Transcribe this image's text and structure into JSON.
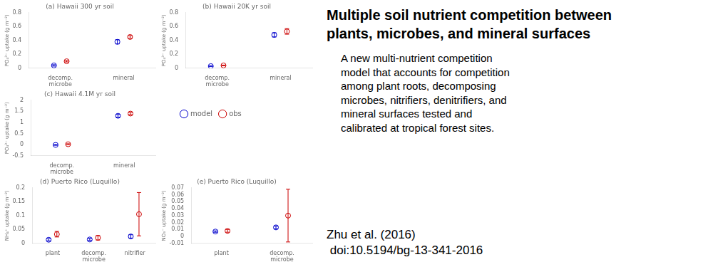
{
  "title": "Multiple soil nutrient competition between\nplants, microbes, and mineral surfaces",
  "subtitle": "A new multi-nutrient competition\nmodel that accounts for competition\namong plant roots, decomposing\nmicrobes, nitrifiers, denitrifiers, and\nmineral surfaces tested and\ncalibrated at tropical forest sites.",
  "annotations": [
    "Zhu et al. (2016)",
    " doi:10.5194/bg-13-341-2016"
  ],
  "legend": "upper left",
  "chart_data": [
    {
      "type": "scatter",
      "title": "(a) Hawaii 300 yr soil",
      "ylabel": "PO₄³⁻ uptake (g m⁻²)",
      "categories": [
        "decomp.\nmicrobe",
        "mineral"
      ],
      "series": [
        {
          "name": "model",
          "color": "#0000cc",
          "values": [
            0.04,
            0.38
          ],
          "errors": [
            0.01,
            0.03
          ]
        },
        {
          "name": "obs",
          "color": "#cc0000",
          "values": [
            0.1,
            0.45
          ],
          "errors": [
            0.01,
            0.02
          ]
        }
      ],
      "ylim": [
        0,
        0.8
      ],
      "yticks": [
        0,
        0.2,
        0.4,
        0.6,
        0.8
      ],
      "grid": false,
      "marker": "circle"
    },
    {
      "type": "scatter",
      "title": "(b) Hawaii 20K yr soil",
      "ylabel": "PO₄³⁻ uptake (g m⁻²)",
      "categories": [
        "decomp.\nmicrobe",
        "mineral"
      ],
      "series": [
        {
          "name": "model",
          "color": "#0000cc",
          "values": [
            0.03,
            0.48
          ],
          "errors": [
            0.005,
            0.03
          ]
        },
        {
          "name": "obs",
          "color": "#cc0000",
          "values": [
            0.04,
            0.53
          ],
          "errors": [
            0.005,
            0.04
          ]
        }
      ],
      "ylim": [
        0,
        0.8
      ],
      "yticks": [
        0,
        0.2,
        0.4,
        0.6,
        0.8
      ],
      "grid": false,
      "marker": "circle"
    },
    {
      "type": "scatter",
      "title": "(c) Hawaii 4.1M yr soil",
      "ylabel": "PO₄³⁻ uptake (g m⁻²)",
      "categories": [
        "decomp.\nmicrobe",
        "mineral"
      ],
      "series": [
        {
          "name": "model",
          "color": "#0000cc",
          "values": [
            -0.01,
            1.3
          ],
          "errors": [
            0.02,
            0.06
          ]
        },
        {
          "name": "obs",
          "color": "#cc0000",
          "values": [
            0.02,
            1.4
          ],
          "errors": [
            0.02,
            0.05
          ]
        }
      ],
      "ylim": [
        -0.5,
        2.0
      ],
      "yticks": [
        -0.5,
        0,
        0.5,
        1,
        1.5,
        2
      ],
      "grid": false,
      "marker": "circle"
    },
    {
      "type": "scatter",
      "title": "(d) Puerto Rico (Luquillo)",
      "ylabel": "NH₄⁺ uptake (g m⁻²)",
      "categories": [
        "plant",
        "decomp.\nmicrobe",
        "nitrifier"
      ],
      "series": [
        {
          "name": "model",
          "color": "#0000cc",
          "values": [
            0.013,
            0.014,
            0.025
          ],
          "errors": [
            0.004,
            0.004,
            0.006
          ]
        },
        {
          "name": "obs",
          "color": "#cc0000",
          "values": [
            0.033,
            0.02,
            0.105
          ],
          "errors": [
            0.01,
            0.008,
            0.078
          ]
        }
      ],
      "ylim": [
        0,
        0.2
      ],
      "yticks": [
        0,
        0.05,
        0.1,
        0.15,
        0.2
      ],
      "grid": false,
      "marker": "circle"
    },
    {
      "type": "scatter",
      "title": "(e) Puerto Rico (Luquillo)",
      "ylabel": "NO₃⁻ uptake (g m⁻²)",
      "categories": [
        "plant",
        "decomp.\nmicrobe"
      ],
      "series": [
        {
          "name": "model",
          "color": "#0000cc",
          "values": [
            0.007,
            0.013
          ],
          "errors": [
            0.001,
            0.002
          ]
        },
        {
          "name": "obs",
          "color": "#cc0000",
          "values": [
            0.008,
            0.03
          ],
          "errors": [
            0.002,
            0.038
          ]
        }
      ],
      "ylim": [
        -0.01,
        0.07
      ],
      "yticks": [
        -0.01,
        0,
        0.01,
        0.02,
        0.03,
        0.04,
        0.05,
        0.06,
        0.07
      ],
      "grid": false,
      "marker": "circle"
    }
  ]
}
